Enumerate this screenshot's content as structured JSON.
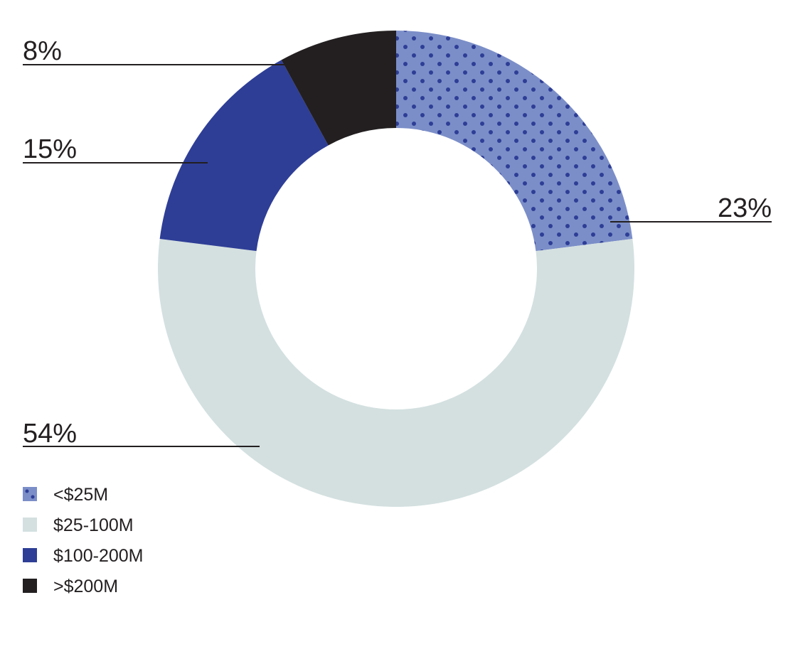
{
  "chart_data": {
    "type": "pie",
    "variant": "donut",
    "categories": [
      "<$25M",
      "$25-100M",
      "$100-200M",
      ">$200M"
    ],
    "values": [
      23,
      54,
      15,
      8
    ],
    "unit": "%",
    "data_labels": [
      "23%",
      "54%",
      "15%",
      "8%"
    ],
    "colors": [
      "#7b8ec8",
      "#d4e0e0",
      "#2e3e96",
      "#231f20"
    ],
    "pattern": {
      "category": "<$25M",
      "type": "dots",
      "dot_color": "#2e3e96"
    },
    "legend_position": "bottom-left",
    "title": "",
    "start_angle_deg": 0,
    "direction": "clockwise"
  }
}
